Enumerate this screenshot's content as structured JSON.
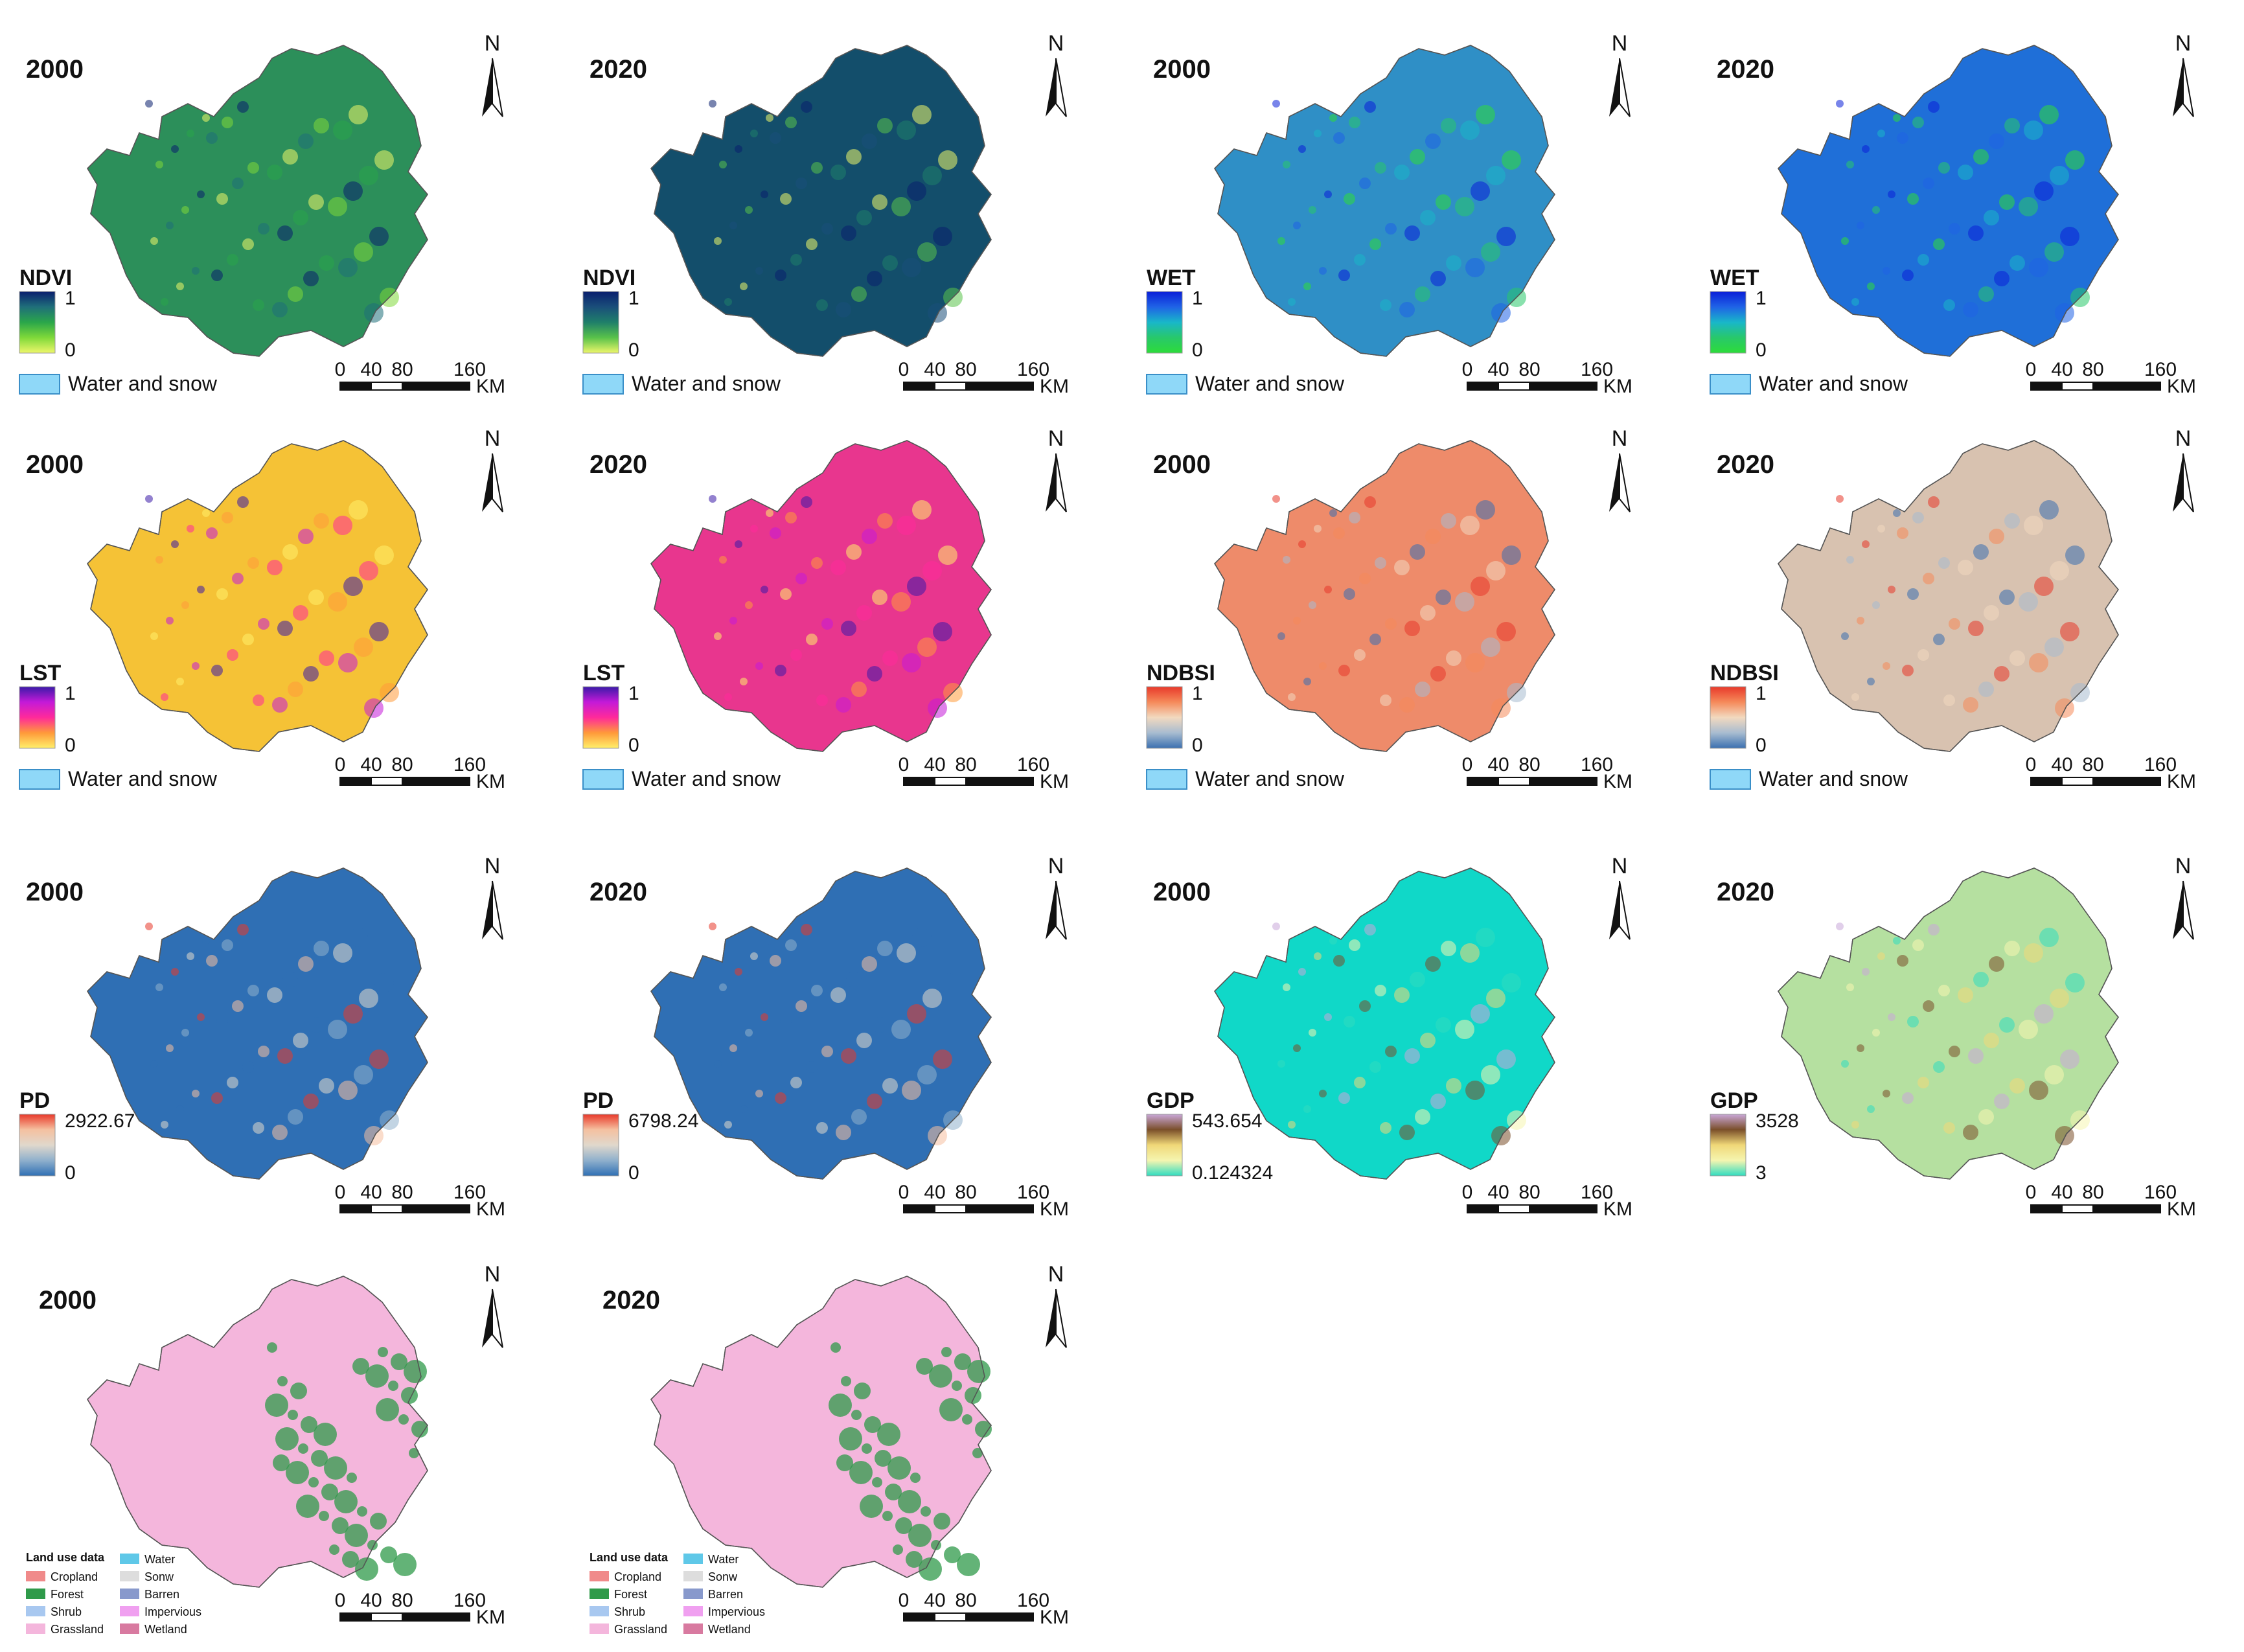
{
  "panels": [
    {
      "id": "ndvi-2000",
      "year": "2000",
      "variable": "NDVI",
      "legend_max": "1",
      "legend_min": "0",
      "water": "Water and snow",
      "colors": [
        "#0a1f6e",
        "#1f6f7a",
        "#2aa64a",
        "#7fd93a",
        "#eef76a"
      ],
      "blob": "#2c8f5a"
    },
    {
      "id": "ndvi-2020",
      "year": "2020",
      "variable": "NDVI",
      "legend_max": "1",
      "legend_min": "0",
      "water": "Water and snow",
      "colors": [
        "#0a1f6e",
        "#1a4f7a",
        "#1f7f6a",
        "#59c24a",
        "#eef76a"
      ],
      "blob": "#134e6b"
    },
    {
      "id": "wet-2000",
      "year": "2000",
      "variable": "WET",
      "legend_max": "1",
      "legend_min": "0",
      "water": "Water and snow",
      "colors": [
        "#0a1fd8",
        "#1f63e6",
        "#19b7c9",
        "#28c86a",
        "#2ddc3a"
      ],
      "blob": "#2f8fc6"
    },
    {
      "id": "wet-2020",
      "year": "2020",
      "variable": "WET",
      "legend_max": "1",
      "legend_min": "0",
      "water": "Water and snow",
      "colors": [
        "#0a1fd8",
        "#1f63e6",
        "#19b7c9",
        "#28c86a",
        "#2ddc3a"
      ],
      "blob": "#1f6fd8"
    },
    {
      "id": "lst-2000",
      "year": "2000",
      "variable": "LST",
      "legend_max": "1",
      "legend_min": "0",
      "water": "Water and snow",
      "colors": [
        "#3a1aa8",
        "#c41ad8",
        "#ff2a9a",
        "#ff9a3a",
        "#fff06a"
      ],
      "blob": "#f5c236"
    },
    {
      "id": "lst-2020",
      "year": "2020",
      "variable": "LST",
      "legend_max": "1",
      "legend_min": "0",
      "water": "Water and snow",
      "colors": [
        "#3a1aa8",
        "#c41ad8",
        "#ff2a9a",
        "#ff9a3a",
        "#fff06a"
      ],
      "blob": "#e8368e"
    },
    {
      "id": "ndbsi-2000",
      "year": "2000",
      "variable": "NDBSI",
      "legend_max": "1",
      "legend_min": "0",
      "water": "Water and snow",
      "colors": [
        "#e8392a",
        "#f58a5a",
        "#f2d9bf",
        "#a8bcd0",
        "#3a6fb0"
      ],
      "blob": "#ee8b6a"
    },
    {
      "id": "ndbsi-2020",
      "year": "2020",
      "variable": "NDBSI",
      "legend_max": "1",
      "legend_min": "0",
      "water": "Water and snow",
      "colors": [
        "#e8392a",
        "#f58a5a",
        "#f2d9bf",
        "#a8bcd0",
        "#3a6fb0"
      ],
      "blob": "#d8c2b0"
    },
    {
      "id": "pd-2000",
      "year": "2000",
      "variable": "PD",
      "legend_max": "2922.67",
      "legend_min": "0",
      "water": "",
      "colors": [
        "#e8392a",
        "#f5c0a0",
        "#e0d8cc",
        "#8fb0cc",
        "#2f6fb4"
      ],
      "blob": "#2f6fb4"
    },
    {
      "id": "pd-2020",
      "year": "2020",
      "variable": "PD",
      "legend_max": "6798.24",
      "legend_min": "0",
      "water": "",
      "colors": [
        "#e8392a",
        "#f5c0a0",
        "#e0d8cc",
        "#8fb0cc",
        "#2f6fb4"
      ],
      "blob": "#2f6fb4"
    },
    {
      "id": "gdp-2000",
      "year": "2000",
      "variable": "GDP",
      "legend_max": "543.654",
      "legend_min": "0.124324",
      "water": "",
      "colors": [
        "#c9a7d8",
        "#7a4f2a",
        "#f0d878",
        "#f5f5b0",
        "#2fdcc0"
      ],
      "blob": "#10d8c8"
    },
    {
      "id": "gdp-2020",
      "year": "2020",
      "variable": "GDP",
      "legend_max": "3528",
      "legend_min": "3",
      "water": "",
      "colors": [
        "#c9a7d8",
        "#7a4f2a",
        "#f0d878",
        "#f5f5b0",
        "#2fdcc0"
      ],
      "blob": "#b5e0a0"
    }
  ],
  "landuse_panels": [
    {
      "id": "landuse-2000",
      "year": "2000",
      "blob": "#f4b6dc"
    },
    {
      "id": "landuse-2020",
      "year": "2020",
      "blob": "#f4b6dc"
    }
  ],
  "landuse_legend": {
    "title": "Land use data",
    "col1": [
      {
        "label": "Cropland",
        "color": "#f08a8a"
      },
      {
        "label": "Forest",
        "color": "#2f9a4a"
      },
      {
        "label": "Shrub",
        "color": "#a8c8f0"
      },
      {
        "label": "Grassland",
        "color": "#f4b6dc"
      }
    ],
    "col2": [
      {
        "label": "Water",
        "color": "#5fc8e8"
      },
      {
        "label": "Sonw",
        "color": "#dddddd"
      },
      {
        "label": "Barren",
        "color": "#8899cc"
      },
      {
        "label": "Impervious",
        "color": "#f0a0f0"
      },
      {
        "label": "Wetland",
        "color": "#d87aa0"
      }
    ]
  },
  "scale": {
    "ticks": [
      "0",
      "40",
      "80",
      "160"
    ],
    "unit": "KM"
  },
  "north": "N"
}
